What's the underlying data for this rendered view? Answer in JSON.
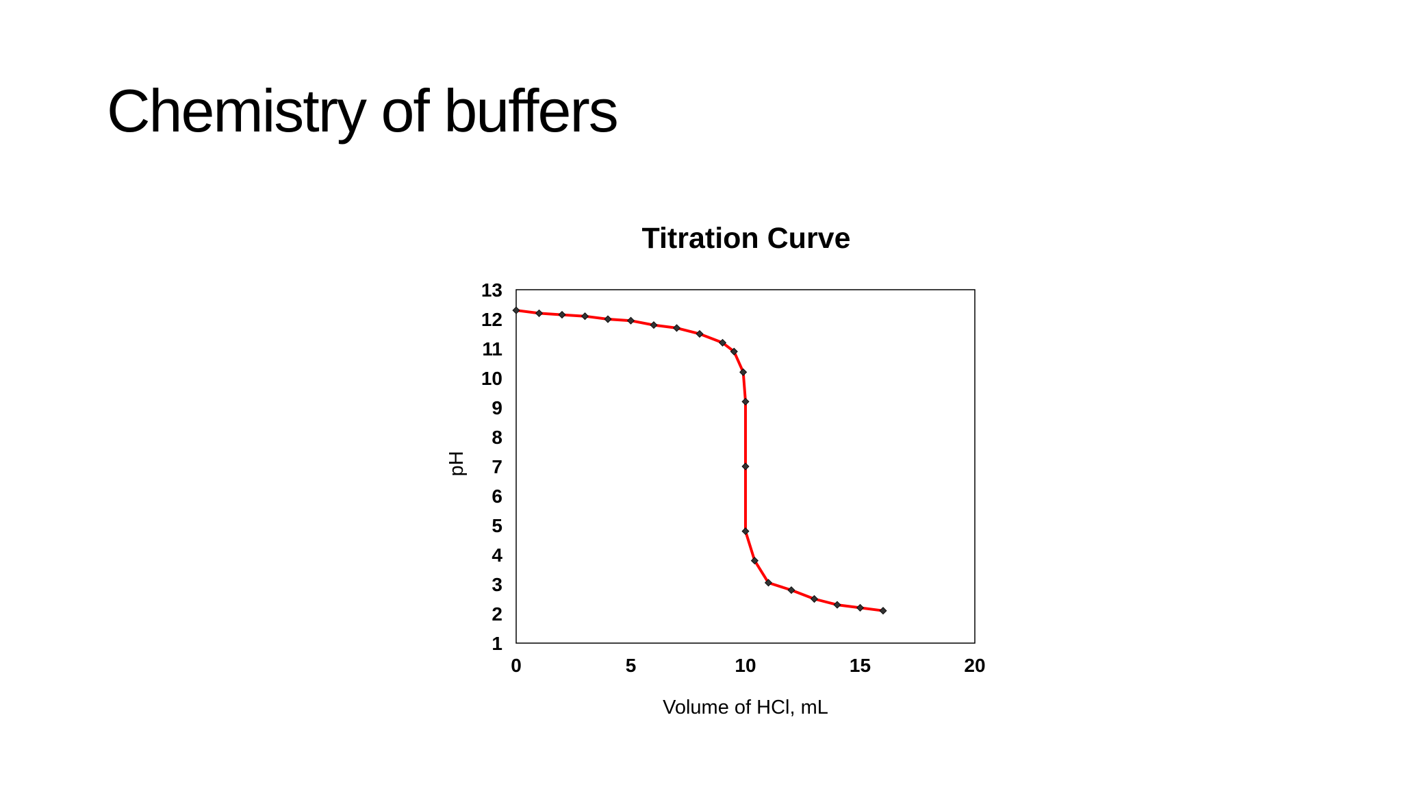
{
  "slide": {
    "title": "Chemistry of buffers"
  },
  "chart_data": {
    "type": "line",
    "title": "Titration Curve",
    "xlabel": "Volume of HCl, mL",
    "ylabel": "pH",
    "xlim": [
      0,
      20
    ],
    "ylim": [
      1,
      13
    ],
    "xticks": [
      0,
      5,
      10,
      15,
      20
    ],
    "yticks": [
      1,
      2,
      3,
      4,
      5,
      6,
      7,
      8,
      9,
      10,
      11,
      12,
      13
    ],
    "grid": false,
    "legend": "none",
    "line_color": "#ff0000",
    "marker_color": "#333333",
    "series": [
      {
        "x": [
          0,
          1,
          2,
          3,
          4,
          5,
          6,
          7,
          8,
          9,
          9.5,
          9.9,
          10,
          10,
          10,
          10.4,
          11,
          12,
          13,
          14,
          15,
          16
        ],
        "y": [
          12.3,
          12.2,
          12.15,
          12.1,
          12.0,
          11.95,
          11.8,
          11.7,
          11.5,
          11.2,
          10.9,
          10.2,
          9.2,
          7.0,
          4.8,
          3.8,
          3.05,
          2.8,
          2.5,
          2.3,
          2.2,
          2.1
        ]
      }
    ]
  }
}
